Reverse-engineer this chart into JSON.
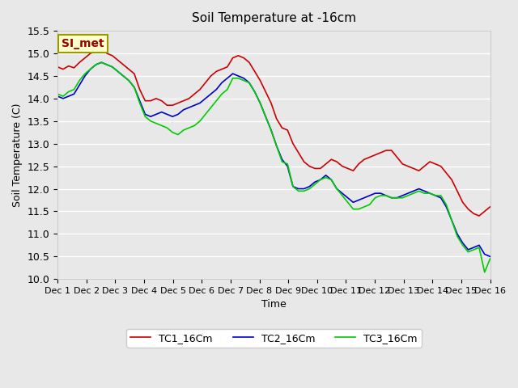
{
  "title": "Soil Temperature at -16cm",
  "xlabel": "Time",
  "ylabel": "Soil Temperature (C)",
  "ylim": [
    10.0,
    15.5
  ],
  "yticks": [
    10.0,
    10.5,
    11.0,
    11.5,
    12.0,
    12.5,
    13.0,
    13.5,
    14.0,
    14.5,
    15.0,
    15.5
  ],
  "xtick_labels": [
    "Dec 1",
    "Dec 2",
    "Dec 3",
    "Dec 4",
    "Dec 5",
    "Dec 6",
    "Dec 7",
    "Dec 8",
    "Dec 9",
    "Dec 10",
    "Dec 11",
    "Dec 12",
    "Dec 13",
    "Dec 14",
    "Dec 15",
    "Dec 16"
  ],
  "bg_color": "#e8e8e8",
  "plot_bg_color": "#e8e8e8",
  "grid_color": "#ffffff",
  "line_colors": [
    "#cc0000",
    "#0000cc",
    "#00cc00"
  ],
  "line_labels": [
    "TC1_16Cm",
    "TC2_16Cm",
    "TC3_16Cm"
  ],
  "watermark_text": "SI_met",
  "watermark_bg": "#ffffcc",
  "watermark_fg": "#990000",
  "legend_bg": "#ffffff",
  "tc1": [
    14.7,
    14.65,
    14.72,
    14.68,
    14.8,
    14.9,
    15.0,
    15.05,
    15.1,
    15.0,
    14.95,
    14.85,
    14.75,
    14.65,
    14.55,
    14.2,
    13.95,
    13.95,
    14.0,
    13.95,
    13.85,
    13.85,
    13.9,
    13.95,
    14.0,
    14.1,
    14.2,
    14.35,
    14.5,
    14.6,
    14.65,
    14.7,
    14.9,
    14.95,
    14.9,
    14.8,
    14.6,
    14.4,
    14.15,
    13.9,
    13.55,
    13.35,
    13.3,
    13.0,
    12.8,
    12.6,
    12.5,
    12.45,
    12.45,
    12.55,
    12.65,
    12.6,
    12.5,
    12.45,
    12.4,
    12.55,
    12.65,
    12.7,
    12.75,
    12.8,
    12.85,
    12.85,
    12.7,
    12.55,
    12.5,
    12.45,
    12.4,
    12.5,
    12.6,
    12.55,
    12.5,
    12.35,
    12.2,
    11.95,
    11.7,
    11.55,
    11.45,
    11.4,
    11.5,
    11.6
  ],
  "tc2": [
    14.05,
    14.0,
    14.05,
    14.1,
    14.3,
    14.5,
    14.65,
    14.75,
    14.8,
    14.75,
    14.7,
    14.6,
    14.5,
    14.4,
    14.25,
    13.95,
    13.65,
    13.6,
    13.65,
    13.7,
    13.65,
    13.6,
    13.65,
    13.75,
    13.8,
    13.85,
    13.9,
    14.0,
    14.1,
    14.2,
    14.35,
    14.45,
    14.55,
    14.5,
    14.45,
    14.35,
    14.15,
    13.9,
    13.6,
    13.3,
    12.95,
    12.65,
    12.5,
    12.05,
    12.0,
    12.0,
    12.05,
    12.15,
    12.2,
    12.3,
    12.2,
    12.0,
    11.9,
    11.8,
    11.7,
    11.75,
    11.8,
    11.85,
    11.9,
    11.9,
    11.85,
    11.8,
    11.8,
    11.85,
    11.9,
    11.95,
    12.0,
    11.95,
    11.9,
    11.85,
    11.8,
    11.6,
    11.3,
    11.0,
    10.8,
    10.65,
    10.7,
    10.75,
    10.55,
    10.5
  ],
  "tc3": [
    14.1,
    14.05,
    14.15,
    14.2,
    14.4,
    14.55,
    14.65,
    14.75,
    14.8,
    14.75,
    14.7,
    14.6,
    14.5,
    14.4,
    14.25,
    13.9,
    13.6,
    13.5,
    13.45,
    13.4,
    13.35,
    13.25,
    13.2,
    13.3,
    13.35,
    13.4,
    13.5,
    13.65,
    13.8,
    13.95,
    14.1,
    14.2,
    14.45,
    14.45,
    14.4,
    14.35,
    14.15,
    13.9,
    13.6,
    13.3,
    12.95,
    12.6,
    12.55,
    12.05,
    11.95,
    11.95,
    12.0,
    12.1,
    12.2,
    12.25,
    12.2,
    12.0,
    11.85,
    11.7,
    11.55,
    11.55,
    11.6,
    11.65,
    11.8,
    11.85,
    11.85,
    11.8,
    11.8,
    11.8,
    11.85,
    11.9,
    11.95,
    11.9,
    11.9,
    11.85,
    11.85,
    11.65,
    11.3,
    10.95,
    10.75,
    10.6,
    10.65,
    10.7,
    10.15,
    10.45
  ]
}
